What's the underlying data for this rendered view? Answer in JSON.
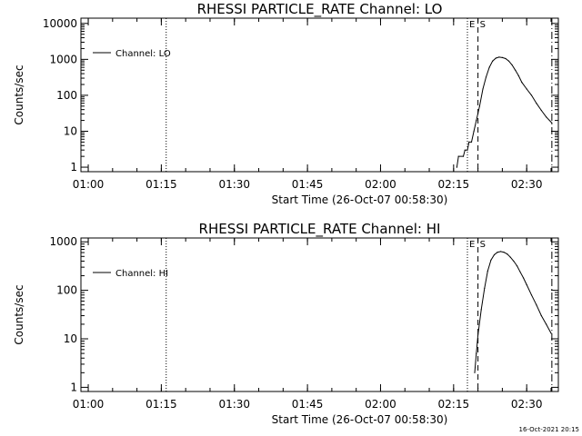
{
  "chart_data": [
    {
      "type": "line",
      "title": "RHESSI PARTICLE_RATE Channel: LO",
      "xlabel": "Start Time (26-Oct-07 00:58:30)",
      "ylabel": "Counts/sec",
      "yscale": "log",
      "xlim": [
        "00:58:30",
        "02:36:30"
      ],
      "ylim": [
        0.75,
        14000
      ],
      "xticks": [
        "01:00",
        "01:15",
        "01:30",
        "01:45",
        "02:00",
        "02:15",
        "02:30"
      ],
      "yticks": [
        "1",
        "10",
        "100",
        "1000",
        "10000"
      ],
      "legend": {
        "label": "Channel: LO",
        "position": "top-left"
      },
      "markers": [
        {
          "time": "01:16:00",
          "style": "dotted",
          "label": ""
        },
        {
          "time": "02:17:50",
          "style": "dotted",
          "label": "E"
        },
        {
          "time": "02:20:00",
          "style": "dashed",
          "label": "S"
        },
        {
          "time": "02:35:10",
          "style": "dashdot",
          "label": ""
        }
      ],
      "series": [
        {
          "name": "Channel: LO",
          "points": [
            [
              "02:15:40",
              1
            ],
            [
              "02:16:00",
              2
            ],
            [
              "02:17:00",
              2
            ],
            [
              "02:17:20",
              3
            ],
            [
              "02:17:50",
              3
            ],
            [
              "02:18:10",
              5
            ],
            [
              "02:18:40",
              5
            ],
            [
              "02:19:10",
              10
            ],
            [
              "02:19:40",
              20
            ],
            [
              "02:20:20",
              50
            ],
            [
              "02:21:00",
              150
            ],
            [
              "02:21:40",
              320
            ],
            [
              "02:22:20",
              600
            ],
            [
              "02:23:00",
              900
            ],
            [
              "02:23:40",
              1080
            ],
            [
              "02:24:20",
              1150
            ],
            [
              "02:25:00",
              1120
            ],
            [
              "02:25:40",
              1050
            ],
            [
              "02:26:20",
              900
            ],
            [
              "02:27:00",
              700
            ],
            [
              "02:27:40",
              500
            ],
            [
              "02:28:20",
              350
            ],
            [
              "02:29:00",
              230
            ],
            [
              "02:30:00",
              150
            ],
            [
              "02:31:00",
              100
            ],
            [
              "02:32:00",
              60
            ],
            [
              "02:33:00",
              38
            ],
            [
              "02:34:00",
              25
            ],
            [
              "02:35:10",
              17
            ]
          ]
        }
      ]
    },
    {
      "type": "line",
      "title": "RHESSI PARTICLE_RATE Channel: HI",
      "xlabel": "Start Time (26-Oct-07 00:58:30)",
      "ylabel": "Counts/sec",
      "yscale": "log",
      "xlim": [
        "00:58:30",
        "02:36:30"
      ],
      "ylim": [
        0.82,
        1200
      ],
      "xticks": [
        "01:00",
        "01:15",
        "01:30",
        "01:45",
        "02:00",
        "02:15",
        "02:30"
      ],
      "yticks": [
        "1",
        "10",
        "100",
        "1000"
      ],
      "legend": {
        "label": "Channel: HI",
        "position": "top-left"
      },
      "markers": [
        {
          "time": "01:16:00",
          "style": "dotted",
          "label": ""
        },
        {
          "time": "02:17:50",
          "style": "dotted",
          "label": "E"
        },
        {
          "time": "02:20:00",
          "style": "dashed",
          "label": "S"
        },
        {
          "time": "02:35:10",
          "style": "dashdot",
          "label": ""
        }
      ],
      "series": [
        {
          "name": "Channel: HI",
          "points": [
            [
              "02:19:20",
              2
            ],
            [
              "02:19:40",
              5
            ],
            [
              "02:20:00",
              12
            ],
            [
              "02:20:40",
              40
            ],
            [
              "02:21:20",
              110
            ],
            [
              "02:22:00",
              250
            ],
            [
              "02:22:40",
              420
            ],
            [
              "02:23:20",
              540
            ],
            [
              "02:24:00",
              610
            ],
            [
              "02:24:40",
              630
            ],
            [
              "02:25:20",
              610
            ],
            [
              "02:26:00",
              560
            ],
            [
              "02:26:40",
              480
            ],
            [
              "02:27:20",
              400
            ],
            [
              "02:28:00",
              320
            ],
            [
              "02:28:40",
              240
            ],
            [
              "02:29:20",
              180
            ],
            [
              "02:30:00",
              130
            ],
            [
              "02:31:00",
              80
            ],
            [
              "02:32:00",
              50
            ],
            [
              "02:33:00",
              30
            ],
            [
              "02:34:00",
              20
            ],
            [
              "02:35:00",
              13
            ]
          ]
        }
      ]
    }
  ],
  "footer": {
    "timestamp": "16-Oct-2021 20:15"
  }
}
